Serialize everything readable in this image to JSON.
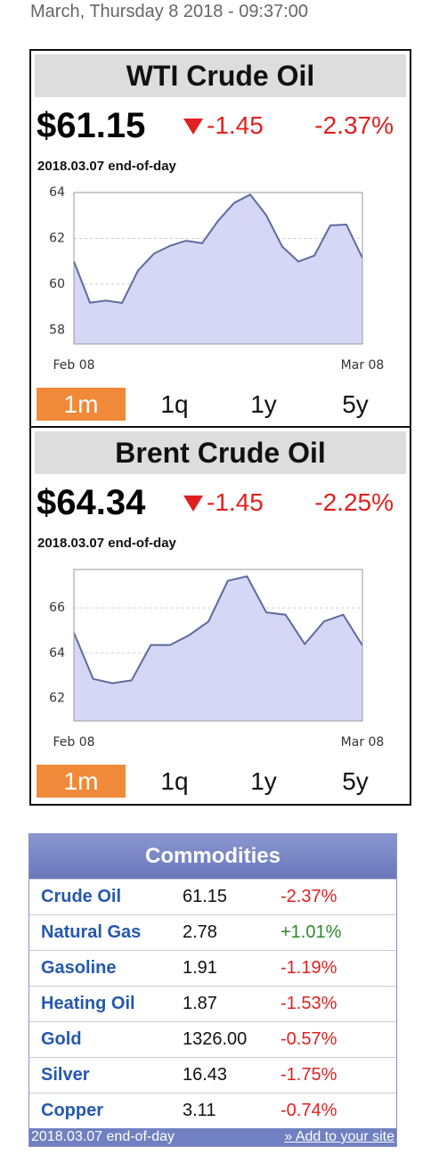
{
  "header": {
    "datetime": "March, Thursday 8 2018 - 09:37:00"
  },
  "chart_data": [
    {
      "type": "line",
      "title": "WTI Crude Oil",
      "price": "$61.15",
      "change": "-1.45",
      "change_percent": "-2.37%",
      "note": "2018.03.07 end-of-day",
      "categories": [
        "Feb 08",
        null,
        null,
        null,
        null,
        null,
        null,
        null,
        null,
        null,
        null,
        null,
        null,
        null,
        null,
        null,
        null,
        null,
        "Mar 08"
      ],
      "values": [
        61.0,
        59.2,
        59.29,
        59.19,
        60.6,
        61.34,
        61.68,
        61.9,
        61.79,
        62.77,
        63.55,
        63.91,
        63.01,
        61.64,
        60.99,
        61.25,
        62.57,
        62.6,
        61.15
      ],
      "ylim": [
        57.4,
        64
      ],
      "yticks": [
        58,
        60,
        62,
        64
      ],
      "grid": true,
      "color": "#5d6b9e",
      "fill_color": "#d6d6f7",
      "tabs": [
        "1m",
        "1q",
        "1y",
        "5y"
      ],
      "active_tab": 0
    },
    {
      "type": "line",
      "title": "Brent Crude Oil",
      "price": "$64.34",
      "change": "-1.45",
      "change_percent": "-2.25%",
      "note": "2018.03.07 end-of-day",
      "categories": [
        "Feb 08",
        null,
        null,
        null,
        null,
        null,
        null,
        null,
        null,
        null,
        null,
        null,
        null,
        null,
        null,
        "Mar 08"
      ],
      "values": [
        64.9,
        62.86,
        62.67,
        62.8,
        64.36,
        64.36,
        64.8,
        65.4,
        67.2,
        67.4,
        65.8,
        65.7,
        64.4,
        65.4,
        65.7,
        64.34
      ],
      "ylim": [
        61,
        67.7
      ],
      "yticks": [
        62,
        64,
        66
      ],
      "grid": true,
      "color": "#5d6b9e",
      "fill_color": "#d6d6f7",
      "tabs": [
        "1m",
        "1q",
        "1y",
        "5y"
      ],
      "active_tab": 0
    }
  ],
  "commodities": {
    "title": "Commodities",
    "rows": [
      [
        "Crude Oil",
        "61.15",
        "-2.37%"
      ],
      [
        "Natural Gas",
        "2.78",
        "+1.01%"
      ],
      [
        "Gasoline",
        "1.91",
        "-1.19%"
      ],
      [
        "Heating Oil",
        "1.87",
        "-1.53%"
      ],
      [
        "Gold",
        "1326.00",
        "-0.57%"
      ],
      [
        "Silver",
        "16.43",
        "-1.75%"
      ],
      [
        "Copper",
        "3.11",
        "-0.74%"
      ]
    ],
    "footer": {
      "note": "2018.03.07 end-of-day",
      "link": "» Add to your site"
    }
  }
}
